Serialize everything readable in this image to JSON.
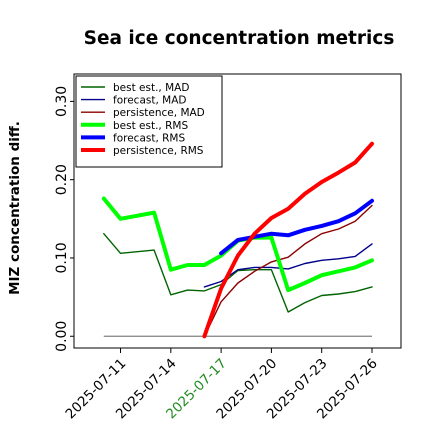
{
  "chart_data": {
    "type": "line",
    "title": "Sea ice concentration metrics",
    "xlabel": "",
    "ylabel": "MIZ concentration diff.",
    "xlim": [
      "2025-07-09",
      "2025-07-26"
    ],
    "ylim": [
      -0.015,
      0.335
    ],
    "yticks": [
      "0.00",
      "0.10",
      "0.20",
      "0.30"
    ],
    "ytick_values": [
      0.0,
      0.1,
      0.2,
      0.3
    ],
    "xticks": [
      "2025-07-11",
      "2025-07-14",
      "2025-07-17",
      "2025-07-20",
      "2025-07-23",
      "2025-07-26"
    ],
    "highlighted_xtick": "2025-07-17",
    "highlight_color": "#228b22",
    "grid": false,
    "legend_position": "top-left",
    "baseline": 0.0,
    "baseline_color": "#808080",
    "x": [
      "2025-07-10",
      "2025-07-11",
      "2025-07-13",
      "2025-07-14",
      "2025-07-15",
      "2025-07-16",
      "2025-07-17",
      "2025-07-18",
      "2025-07-19",
      "2025-07-20",
      "2025-07-21",
      "2025-07-22",
      "2025-07-23",
      "2025-07-24",
      "2025-07-25",
      "2025-07-26"
    ],
    "series": [
      {
        "name": "best est., MAD",
        "color": "#006400",
        "width": 1.4,
        "x": [
          "2025-07-10",
          "2025-07-11",
          "2025-07-13",
          "2025-07-14",
          "2025-07-15",
          "2025-07-16",
          "2025-07-17",
          "2025-07-18",
          "2025-07-19",
          "2025-07-20",
          "2025-07-21",
          "2025-07-22",
          "2025-07-23",
          "2025-07-24",
          "2025-07-25",
          "2025-07-26"
        ],
        "values": [
          0.131,
          0.106,
          0.11,
          0.053,
          0.059,
          0.058,
          0.066,
          0.084,
          0.085,
          0.085,
          0.031,
          0.043,
          0.052,
          0.054,
          0.057,
          0.063
        ]
      },
      {
        "name": "forecast,  MAD",
        "color": "#00008b",
        "width": 1.4,
        "x": [
          "2025-07-16",
          "2025-07-17",
          "2025-07-18",
          "2025-07-19",
          "2025-07-20",
          "2025-07-21",
          "2025-07-22",
          "2025-07-23",
          "2025-07-24",
          "2025-07-25",
          "2025-07-26"
        ],
        "values": [
          0.063,
          0.07,
          0.085,
          0.088,
          0.088,
          0.086,
          0.093,
          0.097,
          0.099,
          0.102,
          0.118
        ]
      },
      {
        "name": "persistence, MAD",
        "color": "#8b0000",
        "width": 1.4,
        "x": [
          "2025-07-16",
          "2025-07-17",
          "2025-07-18",
          "2025-07-19",
          "2025-07-20",
          "2025-07-21",
          "2025-07-22",
          "2025-07-23",
          "2025-07-24",
          "2025-07-25",
          "2025-07-26"
        ],
        "values": [
          0.0,
          0.044,
          0.068,
          0.083,
          0.095,
          0.101,
          0.118,
          0.131,
          0.137,
          0.147,
          0.167
        ]
      },
      {
        "name": "best est., RMS",
        "color": "#00ff00",
        "width": 4,
        "x": [
          "2025-07-10",
          "2025-07-11",
          "2025-07-13",
          "2025-07-14",
          "2025-07-15",
          "2025-07-16",
          "2025-07-17",
          "2025-07-18",
          "2025-07-19",
          "2025-07-20",
          "2025-07-21",
          "2025-07-22",
          "2025-07-23",
          "2025-07-24",
          "2025-07-25",
          "2025-07-26"
        ],
        "values": [
          0.176,
          0.15,
          0.158,
          0.085,
          0.091,
          0.091,
          0.103,
          0.122,
          0.126,
          0.126,
          0.059,
          0.068,
          0.078,
          0.083,
          0.088,
          0.097
        ]
      },
      {
        "name": "forecast,  RMS",
        "color": "#0000ff",
        "width": 4,
        "x": [
          "2025-07-17",
          "2025-07-18",
          "2025-07-19",
          "2025-07-20",
          "2025-07-21",
          "2025-07-22",
          "2025-07-23",
          "2025-07-24",
          "2025-07-25",
          "2025-07-26"
        ],
        "values": [
          0.106,
          0.123,
          0.127,
          0.131,
          0.129,
          0.136,
          0.141,
          0.147,
          0.157,
          0.173
        ]
      },
      {
        "name": "persistence, RMS",
        "color": "#ff0000",
        "width": 4,
        "x": [
          "2025-07-16",
          "2025-07-17",
          "2025-07-18",
          "2025-07-19",
          "2025-07-20",
          "2025-07-21",
          "2025-07-22",
          "2025-07-23",
          "2025-07-24",
          "2025-07-25",
          "2025-07-26"
        ],
        "values": [
          0.0,
          0.061,
          0.103,
          0.131,
          0.151,
          0.163,
          0.182,
          0.197,
          0.209,
          0.222,
          0.246
        ]
      }
    ]
  }
}
